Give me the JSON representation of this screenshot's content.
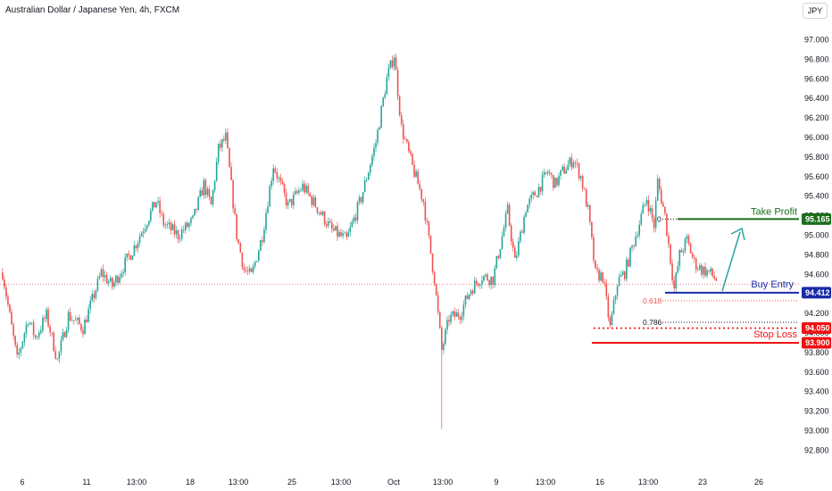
{
  "header": {
    "title": "Australian Dollar / Japanese Yen, 4h, FXCM"
  },
  "currency_button": {
    "label": "JPY"
  },
  "colors": {
    "up": "#26a69a",
    "down": "#ef5350",
    "take_profit": "#1b6e1b",
    "buy_entry": "#1a2ba8",
    "stop_loss": "#ee1111",
    "grid": "#ffffff"
  },
  "chart_data": {
    "type": "candlestick",
    "title": "Australian Dollar / Japanese Yen, 4h, FXCM",
    "xlabel": "",
    "ylabel": "",
    "ylim": [
      92.72,
      97.2
    ],
    "y_ticks": [
      "97.000",
      "96.800",
      "96.600",
      "96.400",
      "96.200",
      "96.000",
      "95.800",
      "95.600",
      "95.400",
      "95.200",
      "95.000",
      "94.800",
      "94.600",
      "94.400",
      "94.200",
      "94.000",
      "93.800",
      "93.600",
      "93.400",
      "93.200",
      "93.000",
      "92.800"
    ],
    "x_ticks": [
      "6",
      "11",
      "13:00",
      "18",
      "13:00",
      "25",
      "13:00",
      "Oct",
      "13:00",
      "9",
      "13:00",
      "16",
      "13:00",
      "23",
      "26"
    ],
    "ohlc_anchors": [
      [
        0,
        94.62
      ],
      [
        8,
        93.72
      ],
      [
        14,
        94.15
      ],
      [
        18,
        93.95
      ],
      [
        24,
        94.18
      ],
      [
        30,
        93.72
      ],
      [
        36,
        94.18
      ],
      [
        44,
        94.05
      ],
      [
        54,
        94.62
      ],
      [
        60,
        94.48
      ],
      [
        72,
        94.88
      ],
      [
        84,
        95.35
      ],
      [
        88,
        95.12
      ],
      [
        96,
        95.0
      ],
      [
        104,
        95.15
      ],
      [
        110,
        95.52
      ],
      [
        114,
        95.3
      ],
      [
        118,
        95.88
      ],
      [
        122,
        96.0
      ],
      [
        128,
        95.0
      ],
      [
        132,
        94.65
      ],
      [
        136,
        94.58
      ],
      [
        142,
        95.0
      ],
      [
        148,
        95.72
      ],
      [
        156,
        95.3
      ],
      [
        164,
        95.5
      ],
      [
        172,
        95.28
      ],
      [
        180,
        95.05
      ],
      [
        188,
        94.95
      ],
      [
        196,
        95.38
      ],
      [
        204,
        95.95
      ],
      [
        210,
        96.6
      ],
      [
        214,
        96.85
      ],
      [
        218,
        96.1
      ],
      [
        224,
        95.7
      ],
      [
        230,
        95.35
      ],
      [
        236,
        94.55
      ],
      [
        240,
        93.82
      ],
      [
        244,
        94.15
      ],
      [
        250,
        94.2
      ],
      [
        256,
        94.45
      ],
      [
        262,
        94.58
      ],
      [
        268,
        94.55
      ],
      [
        276,
        95.25
      ],
      [
        280,
        94.72
      ],
      [
        286,
        95.28
      ],
      [
        292,
        95.45
      ],
      [
        298,
        95.65
      ],
      [
        302,
        95.52
      ],
      [
        306,
        95.65
      ],
      [
        312,
        95.78
      ],
      [
        316,
        95.6
      ],
      [
        320,
        95.25
      ],
      [
        324,
        94.6
      ],
      [
        328,
        94.58
      ],
      [
        332,
        94.05
      ],
      [
        336,
        94.52
      ],
      [
        340,
        94.62
      ],
      [
        346,
        95.0
      ],
      [
        352,
        95.38
      ],
      [
        356,
        95.1
      ],
      [
        358,
        95.55
      ],
      [
        362,
        95.2
      ],
      [
        364,
        94.9
      ],
      [
        367,
        94.45
      ],
      [
        370,
        94.8
      ],
      [
        374,
        94.95
      ],
      [
        378,
        94.72
      ],
      [
        382,
        94.65
      ],
      [
        386,
        94.62
      ],
      [
        390,
        94.55
      ]
    ],
    "annotations": {
      "take_profit": {
        "label": "Take Profit",
        "value": "95.165"
      },
      "buy_entry": {
        "label": "Buy Entry",
        "value": "94.412"
      },
      "stop_loss": {
        "label": "Stop Loss",
        "value": "93.900"
      },
      "fib_0": {
        "label": "0"
      },
      "fib_0618": {
        "label": "0.618"
      },
      "fib_0786": {
        "label": "0.786",
        "value": "94.050"
      }
    },
    "grid": false,
    "last_price_dotted_line": 94.5
  }
}
